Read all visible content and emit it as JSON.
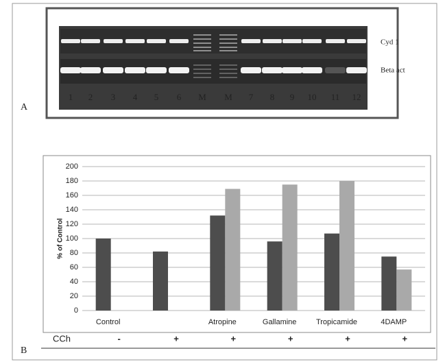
{
  "gel": {
    "panel": "A",
    "rows": [
      "Cyd 1",
      "Beta act"
    ],
    "lanes": [
      "1",
      "2",
      "3",
      "4",
      "5",
      "6",
      "M",
      "M",
      "7",
      "8",
      "9",
      "10",
      "11",
      "12"
    ]
  },
  "chart_data": {
    "type": "bar",
    "panel": "B",
    "y_label": "% of Control",
    "categories": [
      "Control",
      null,
      "Atropine",
      "Gallamine",
      "Tropicamide",
      "4DAMP"
    ],
    "series": [
      {
        "color": "#4d4d4d",
        "values": [
          100,
          82,
          132,
          96,
          107,
          75
        ]
      },
      {
        "color": "#a9a9a9",
        "values": [
          null,
          null,
          169,
          175,
          180,
          57
        ]
      }
    ],
    "ylim": [
      0,
      200
    ],
    "yticks": [
      0,
      20,
      40,
      60,
      80,
      100,
      120,
      140,
      160,
      180,
      200
    ],
    "grid": true,
    "treatment_label": "CCh",
    "treatment": [
      "-",
      "+",
      "+",
      "+",
      "+",
      "+"
    ]
  }
}
